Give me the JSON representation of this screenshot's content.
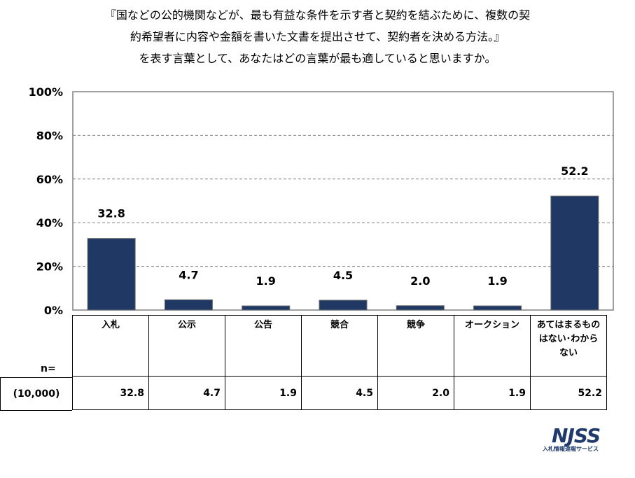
{
  "question": {
    "line1": "『国などの公的機関などが、最も有益な条件を示す者と契約を結ぶために、複数の契",
    "line2": "約希望者に内容や金額を書いた文書を提出させて、契約者を決める方法。』",
    "line3": "を表す言葉として、あなたはどの言葉が最も適していると思いますか。"
  },
  "chart_data": {
    "type": "bar",
    "categories": [
      "入札",
      "公示",
      "公告",
      "競合",
      "競争",
      "オークション",
      "あてはまるものはない･わからない"
    ],
    "values": [
      32.8,
      4.7,
      1.9,
      4.5,
      2.0,
      1.9,
      52.2
    ],
    "value_labels": [
      "32.8",
      "4.7",
      "1.9",
      "4.5",
      "2.0",
      "1.9",
      "52.2"
    ],
    "ylim": [
      0,
      100
    ],
    "yticks": [
      "0%",
      "20%",
      "40%",
      "60%",
      "80%",
      "100%"
    ],
    "grid": "dashed horizontal",
    "bar_color": "#1f3864"
  },
  "table": {
    "n_label": "n=",
    "n_total": "(10,000)",
    "categories": [
      "入札",
      "公示",
      "公告",
      "競合",
      "競争",
      "オークション",
      "あてはまるもの\nはない･わから\nない"
    ],
    "values": [
      "32.8",
      "4.7",
      "1.9",
      "4.5",
      "2.0",
      "1.9",
      "52.2"
    ]
  },
  "logo": {
    "mark": "NJSS",
    "subtitle": "入札情報速報サービス",
    "color": "#1f3a6b"
  }
}
